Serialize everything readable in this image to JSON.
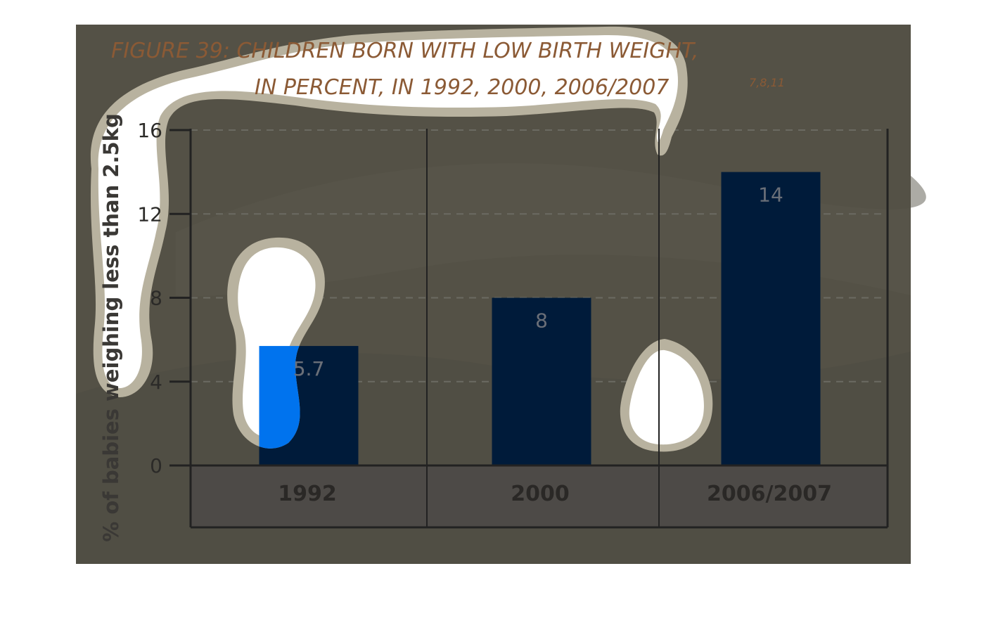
{
  "chart_data": {
    "type": "bar",
    "title_line1": "FIGURE 39: CHILDREN BORN WITH LOW BIRTH WEIGHT,",
    "title_line2": "IN PERCENT, IN 1992, 2000, 2006/2007",
    "title_superscript": "7,8,11",
    "ylabel": "% of babies weighing less than 2.5kg",
    "xlabel": "",
    "categories": [
      "1992",
      "2000",
      "2006/2007"
    ],
    "values": [
      5.7,
      8,
      14
    ],
    "data_labels": [
      "5.7",
      "8",
      "14"
    ],
    "yticks": [
      0,
      4,
      8,
      12,
      16
    ],
    "ylim": [
      0,
      16
    ],
    "grid": true,
    "legend": "none"
  },
  "colors": {
    "background": "#545146",
    "bar": "#001b3a",
    "axis": "#222222",
    "grid": "#6b6a62",
    "title": "#8b5a35",
    "data_label": "#6a6f78",
    "category_band": "#4d4a47",
    "splash": "#ffffff",
    "splash_rim": "#b8b29f",
    "highlight": "#0073ee"
  }
}
